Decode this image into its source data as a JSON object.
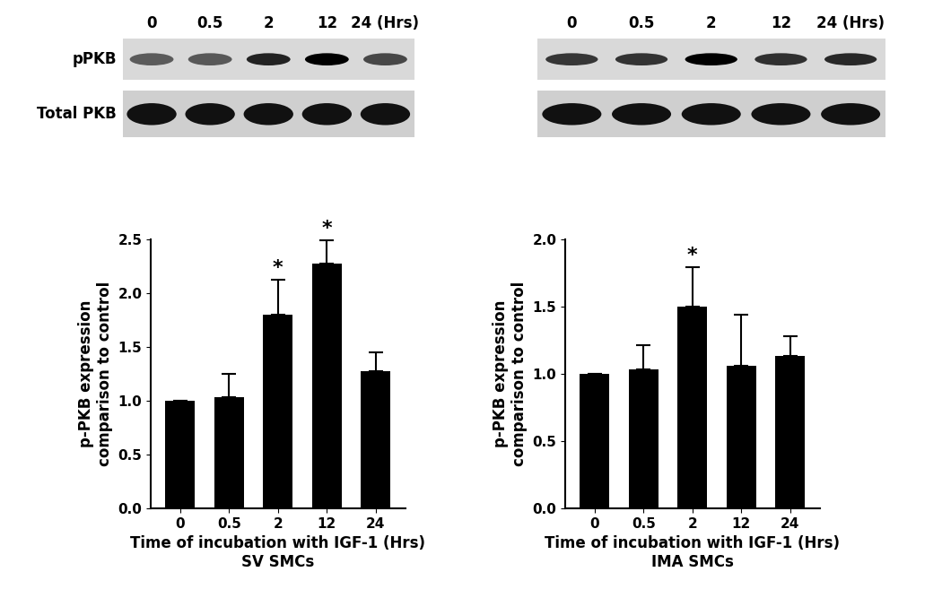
{
  "chart_data": [
    {
      "type": "bar",
      "categories": [
        "0",
        "0.5",
        "2",
        "12",
        "24"
      ],
      "values": [
        1.0,
        1.03,
        1.8,
        2.27,
        1.27
      ],
      "errors": [
        0.0,
        0.22,
        0.32,
        0.22,
        0.18
      ],
      "color": "#000000",
      "x_label": "Time of incubation with IGF-1 (Hrs)\nSV SMCs",
      "y_label": "p-PKB expression\ncomparison to control",
      "ylim": [
        0.0,
        2.5
      ],
      "yticks": [
        {
          "value": 0.0,
          "label": "0.0"
        },
        {
          "value": 0.5,
          "label": "0.5"
        },
        {
          "value": 1.0,
          "label": "1.0"
        },
        {
          "value": 1.5,
          "label": "1.5"
        },
        {
          "value": 2.0,
          "label": "2.0"
        },
        {
          "value": 2.5,
          "label": "2.5"
        }
      ],
      "annotations": [
        {
          "category": "2",
          "text": "*"
        },
        {
          "category": "12",
          "text": "*"
        }
      ],
      "grid": false
    },
    {
      "type": "bar",
      "categories": [
        "0",
        "0.5",
        "2",
        "12",
        "24"
      ],
      "values": [
        1.0,
        1.03,
        1.5,
        1.06,
        1.13
      ],
      "errors": [
        0.0,
        0.18,
        0.29,
        0.38,
        0.15
      ],
      "color": "#000000",
      "x_label": "Time of incubation with IGF-1 (Hrs)\nIMA SMCs",
      "y_label": "p-PKB expression\ncomparison to control",
      "ylim": [
        0.0,
        2.0
      ],
      "yticks": [
        {
          "value": 0.0,
          "label": "0.0"
        },
        {
          "value": 0.5,
          "label": "0.5"
        },
        {
          "value": 1.0,
          "label": "1.0"
        },
        {
          "value": 1.5,
          "label": "1.5"
        },
        {
          "value": 2.0,
          "label": "2.0"
        }
      ],
      "annotations": [
        {
          "category": "2",
          "text": "*"
        }
      ],
      "grid": false
    }
  ],
  "blots": [
    {
      "lane_labels": [
        "0",
        "0.5",
        "2",
        "12",
        "24 (Hrs)"
      ],
      "row_labels": [
        "pPKB",
        "Total PKB"
      ]
    },
    {
      "lane_labels": [
        "0",
        "0.5",
        "2",
        "12",
        "24 (Hrs)"
      ]
    }
  ]
}
